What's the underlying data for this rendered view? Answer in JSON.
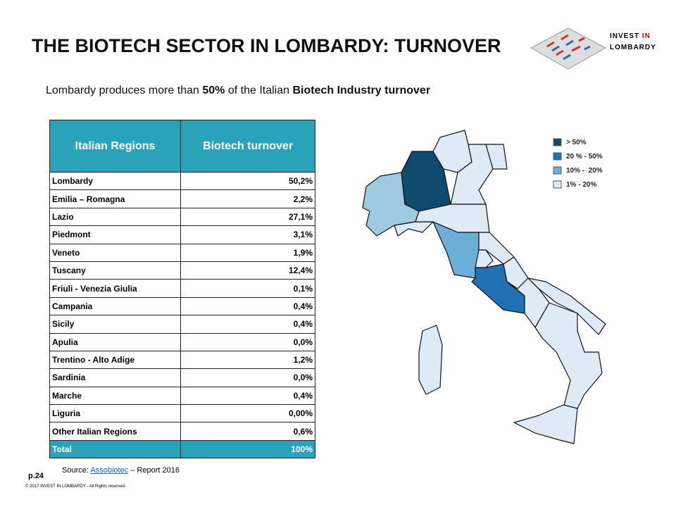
{
  "header": {
    "title": "THE BIOTECH SECTOR IN LOMBARDY: TURNOVER",
    "logo": [
      "INVEST",
      "IN",
      "LOMBARDY"
    ]
  },
  "subtitle": [
    "Lombardy produces more than",
    "50%",
    "of the Italian",
    "Biotech Industry turnover"
  ],
  "table": {
    "headers": [
      "Italian Regions",
      "Biotech turnover"
    ],
    "rows": [
      [
        "Lombardy",
        "50,2%"
      ],
      [
        "Emilia – Romagna",
        "2,2%"
      ],
      [
        "Lazio",
        "27,1%"
      ],
      [
        "Piedmont",
        "3,1%"
      ],
      [
        "Veneto",
        "1,9%"
      ],
      [
        "Tuscany",
        "12,4%"
      ],
      [
        "Friuli - Venezia Giulia",
        "0,1%"
      ],
      [
        "Campania",
        "0,4%"
      ],
      [
        "Sicily",
        "0,4%"
      ],
      [
        "Apulia",
        "0,0%"
      ],
      [
        "Trentino - Alto Adige",
        "1,2%"
      ],
      [
        "Sardinia",
        "0,0%"
      ],
      [
        "Marche",
        "0,4%"
      ],
      [
        "Liguria",
        "0,00%"
      ],
      [
        "Other Italian Regions",
        "0,6%"
      ]
    ],
    "total": [
      "Total",
      "100%"
    ]
  },
  "legend": [
    "> 50%",
    "20 % - 50%",
    "10% -  20%",
    "1% - 20%"
  ],
  "footer": {
    "page": "p.24",
    "source": [
      "Source:",
      "Assobiotec",
      "– Report 2016"
    ],
    "copyright": "© 2017 INVEST IN LOMBARDY - All Rights reserved."
  }
}
